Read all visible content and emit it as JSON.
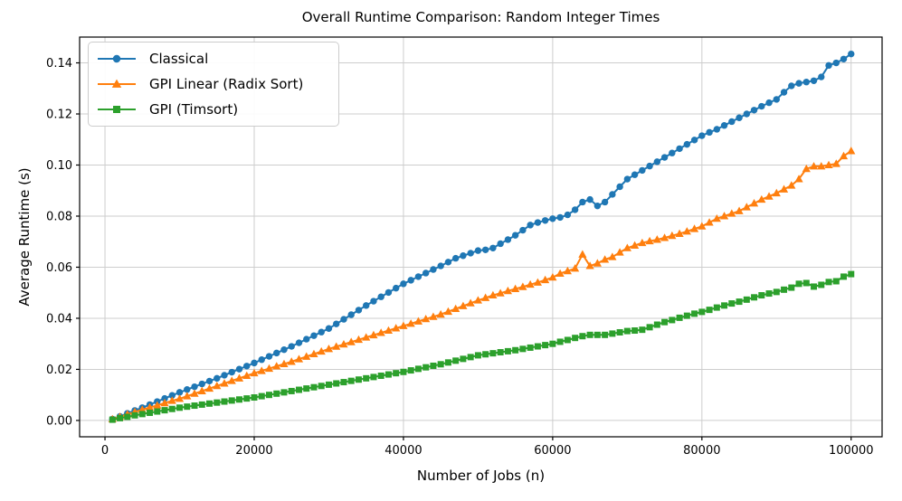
{
  "chart_data": {
    "type": "line",
    "title": "Overall Runtime Comparison: Random Integer Times",
    "xlabel": "Number of Jobs (n)",
    "ylabel": "Average Runtime (s)",
    "grid": true,
    "legend_position": "upper left",
    "background_color": "#ffffff",
    "grid_color": "#cdcdcd",
    "axis_color": "#000000",
    "xlim": [
      -3400,
      104150
    ],
    "ylim": [
      -0.0064,
      0.1501
    ],
    "xticks": [
      0,
      20000,
      40000,
      60000,
      80000,
      100000
    ],
    "xtick_labels": [
      "0",
      "20000",
      "40000",
      "60000",
      "80000",
      "100000"
    ],
    "yticks": [
      0.0,
      0.02,
      0.04,
      0.06,
      0.08,
      0.1,
      0.12,
      0.14
    ],
    "ytick_labels": [
      "0.00",
      "0.02",
      "0.04",
      "0.06",
      "0.08",
      "0.10",
      "0.12",
      "0.14"
    ],
    "x": [
      1000,
      2000,
      3000,
      4000,
      5000,
      6000,
      7000,
      8000,
      9000,
      10000,
      11000,
      12000,
      13000,
      14000,
      15000,
      16000,
      17000,
      18000,
      19000,
      20000,
      21000,
      22000,
      23000,
      24000,
      25000,
      26000,
      27000,
      28000,
      29000,
      30000,
      31000,
      32000,
      33000,
      34000,
      35000,
      36000,
      37000,
      38000,
      39000,
      40000,
      41000,
      42000,
      43000,
      44000,
      45000,
      46000,
      47000,
      48000,
      49000,
      50000,
      51000,
      52000,
      53000,
      54000,
      55000,
      56000,
      57000,
      58000,
      59000,
      60000,
      61000,
      62000,
      63000,
      64000,
      65000,
      66000,
      67000,
      68000,
      69000,
      70000,
      71000,
      72000,
      73000,
      74000,
      75000,
      76000,
      77000,
      78000,
      79000,
      80000,
      81000,
      82000,
      83000,
      84000,
      85000,
      86000,
      87000,
      88000,
      89000,
      90000,
      91000,
      92000,
      93000,
      94000,
      95000,
      96000,
      97000,
      98000,
      99000,
      100000
    ],
    "series": [
      {
        "name": "Classical",
        "color": "#1f77b4",
        "marker": "circle",
        "values": [
          0.0005,
          0.0016,
          0.0028,
          0.0039,
          0.005,
          0.0062,
          0.0074,
          0.0086,
          0.0098,
          0.011,
          0.0121,
          0.0132,
          0.0143,
          0.0154,
          0.0165,
          0.0177,
          0.0189,
          0.0201,
          0.0213,
          0.0225,
          0.0238,
          0.0251,
          0.0264,
          0.0277,
          0.029,
          0.0304,
          0.0318,
          0.0332,
          0.0346,
          0.036,
          0.0378,
          0.0396,
          0.0414,
          0.0432,
          0.045,
          0.0467,
          0.0484,
          0.0501,
          0.0518,
          0.0535,
          0.0549,
          0.0563,
          0.0577,
          0.0591,
          0.0605,
          0.062,
          0.0635,
          0.0645,
          0.0655,
          0.0665,
          0.0668,
          0.0675,
          0.0692,
          0.0708,
          0.0725,
          0.0745,
          0.0765,
          0.0775,
          0.0783,
          0.079,
          0.0795,
          0.0805,
          0.0825,
          0.0855,
          0.0865,
          0.084,
          0.0855,
          0.0885,
          0.0915,
          0.0945,
          0.0962,
          0.0979,
          0.0996,
          0.1013,
          0.103,
          0.1047,
          0.1064,
          0.1081,
          0.1098,
          0.1115,
          0.1128,
          0.114,
          0.1155,
          0.117,
          0.1185,
          0.12,
          0.1215,
          0.123,
          0.1244,
          0.1257,
          0.1285,
          0.131,
          0.132,
          0.1325,
          0.133,
          0.1345,
          0.139,
          0.14,
          0.1415,
          0.1435
        ]
      },
      {
        "name": "GPI Linear (Radix Sort)",
        "color": "#ff7f0e",
        "marker": "triangle",
        "values": [
          0.0005,
          0.0014,
          0.0024,
          0.0033,
          0.0042,
          0.0051,
          0.0059,
          0.0068,
          0.0077,
          0.0085,
          0.0095,
          0.0105,
          0.0115,
          0.0125,
          0.0135,
          0.0145,
          0.0155,
          0.0165,
          0.0175,
          0.0185,
          0.0194,
          0.0203,
          0.0212,
          0.0221,
          0.023,
          0.024,
          0.025,
          0.026,
          0.027,
          0.028,
          0.0289,
          0.0298,
          0.0307,
          0.0316,
          0.0325,
          0.0334,
          0.0343,
          0.0352,
          0.0361,
          0.037,
          0.0379,
          0.0388,
          0.0397,
          0.0406,
          0.0415,
          0.0426,
          0.0437,
          0.0448,
          0.0459,
          0.047,
          0.048,
          0.049,
          0.0498,
          0.0507,
          0.0515,
          0.0523,
          0.0532,
          0.054,
          0.055,
          0.056,
          0.0575,
          0.0585,
          0.0595,
          0.065,
          0.0605,
          0.0615,
          0.063,
          0.064,
          0.0658,
          0.0675,
          0.0685,
          0.0695,
          0.0702,
          0.0708,
          0.0715,
          0.0723,
          0.0731,
          0.074,
          0.075,
          0.076,
          0.0775,
          0.079,
          0.08,
          0.081,
          0.082,
          0.0835,
          0.085,
          0.0865,
          0.0877,
          0.089,
          0.0905,
          0.092,
          0.0945,
          0.0985,
          0.0995,
          0.0995,
          0.1,
          0.1005,
          0.1035,
          0.1055
        ]
      },
      {
        "name": "GPI (Timsort)",
        "color": "#2ca02c",
        "marker": "square",
        "values": [
          0.0003,
          0.0009,
          0.0014,
          0.002,
          0.0025,
          0.003,
          0.0035,
          0.004,
          0.0045,
          0.005,
          0.0054,
          0.0058,
          0.0062,
          0.0066,
          0.007,
          0.0074,
          0.0078,
          0.0082,
          0.0086,
          0.009,
          0.0095,
          0.01,
          0.0105,
          0.011,
          0.0115,
          0.012,
          0.0125,
          0.013,
          0.0135,
          0.014,
          0.0145,
          0.015,
          0.0155,
          0.016,
          0.0165,
          0.017,
          0.0175,
          0.018,
          0.0185,
          0.019,
          0.0196,
          0.0202,
          0.0208,
          0.0214,
          0.022,
          0.0227,
          0.0234,
          0.0241,
          0.0248,
          0.0255,
          0.0259,
          0.0263,
          0.0267,
          0.0271,
          0.0275,
          0.028,
          0.0285,
          0.029,
          0.0295,
          0.03,
          0.0308,
          0.0315,
          0.0323,
          0.033,
          0.0335,
          0.0335,
          0.0335,
          0.034,
          0.0345,
          0.035,
          0.0352,
          0.0355,
          0.0365,
          0.0375,
          0.0385,
          0.0393,
          0.0402,
          0.041,
          0.0418,
          0.0425,
          0.0433,
          0.0442,
          0.045,
          0.0458,
          0.0465,
          0.0473,
          0.0482,
          0.049,
          0.0497,
          0.0503,
          0.0512,
          0.052,
          0.0535,
          0.0538,
          0.0524,
          0.0531,
          0.0542,
          0.0545,
          0.0563,
          0.0573
        ]
      }
    ]
  }
}
